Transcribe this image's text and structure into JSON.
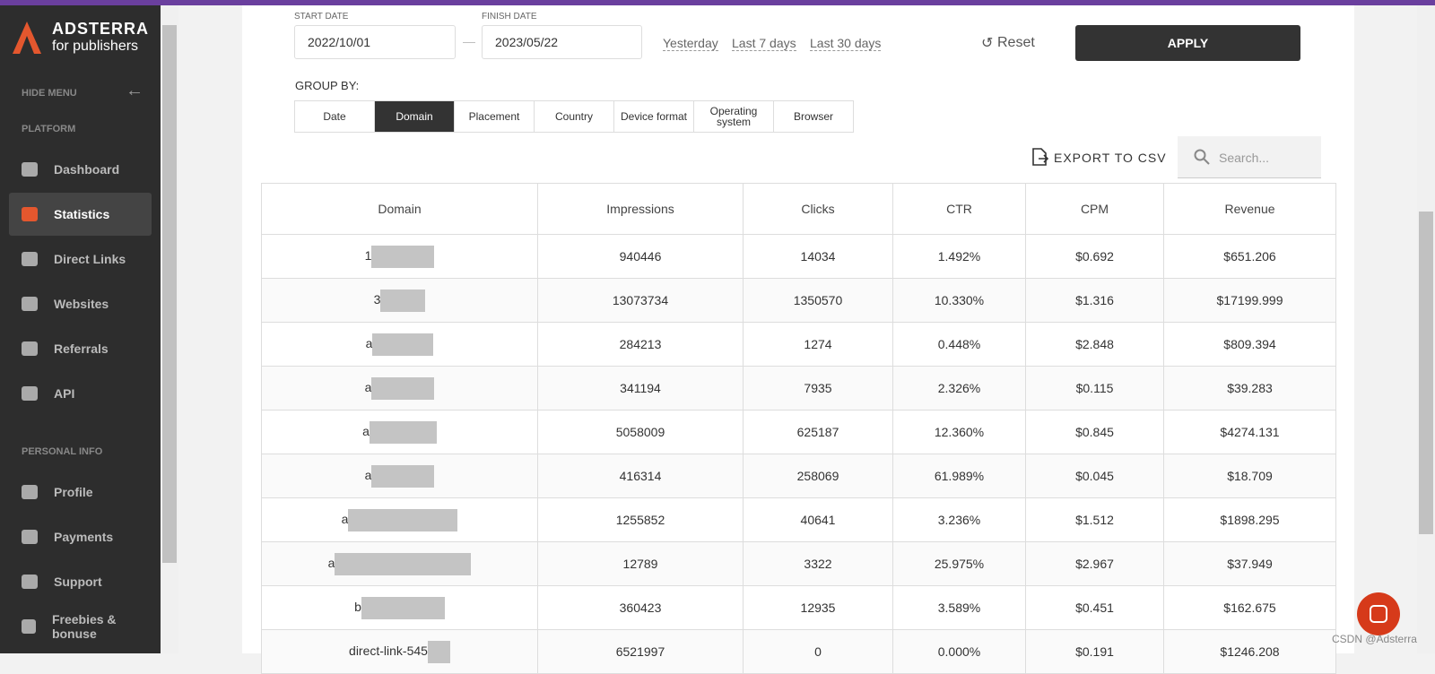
{
  "sidebar": {
    "brand": "ADSTERRA",
    "brand_sub": "for publishers",
    "hide_menu": "HIDE MENU",
    "section_platform": "PLATFORM",
    "nav": [
      "Dashboard",
      "Statistics",
      "Direct Links",
      "Websites",
      "Referrals",
      "API"
    ],
    "active_nav": 1,
    "section_personal": "PERSONAL INFO",
    "personal_nav": [
      "Profile",
      "Payments",
      "Support",
      "Freebies & bonuse"
    ]
  },
  "filters": {
    "start_label": "START DATE",
    "start_value": "2022/10/01",
    "separator": "—",
    "finish_label": "FINISH DATE",
    "finish_value": "2023/05/22",
    "presets": [
      "Yesterday",
      "Last 7 days",
      "Last 30 days"
    ],
    "reset": "Reset",
    "apply": "APPLY"
  },
  "group_by": {
    "label": "GROUP BY:",
    "options": [
      "Date",
      "Domain",
      "Placement",
      "Country",
      "Device format",
      "Operating system",
      "Browser"
    ],
    "active": 1
  },
  "export": "EXPORT TO CSV",
  "search_placeholder": "Search...",
  "table": {
    "headers": [
      "Domain",
      "Impressions",
      "Clicks",
      "CTR",
      "CPM",
      "Revenue"
    ],
    "rows": [
      [
        "1",
        "940446",
        "14034",
        "1.492%",
        "$0.692",
        "$651.206"
      ],
      [
        "3",
        "13073734",
        "1350570",
        "10.330%",
        "$1.316",
        "$17199.999"
      ],
      [
        "a",
        "284213",
        "1274",
        "0.448%",
        "$2.848",
        "$809.394"
      ],
      [
        "a",
        "341194",
        "7935",
        "2.326%",
        "$0.115",
        "$39.283"
      ],
      [
        "a",
        "5058009",
        "625187",
        "12.360%",
        "$0.845",
        "$4274.131"
      ],
      [
        "a",
        "416314",
        "258069",
        "61.989%",
        "$0.045",
        "$18.709"
      ],
      [
        "a",
        "1255852",
        "40641",
        "3.236%",
        "$1.512",
        "$1898.295"
      ],
      [
        "a",
        "12789",
        "3322",
        "25.975%",
        "$2.967",
        "$37.949"
      ],
      [
        "b",
        "360423",
        "12935",
        "3.589%",
        "$0.451",
        "$162.675"
      ],
      [
        "direct-link-545",
        "6521997",
        "0",
        "0.000%",
        "$0.191",
        "$1246.208"
      ]
    ]
  },
  "watermark": "CSDN @Adsterra"
}
